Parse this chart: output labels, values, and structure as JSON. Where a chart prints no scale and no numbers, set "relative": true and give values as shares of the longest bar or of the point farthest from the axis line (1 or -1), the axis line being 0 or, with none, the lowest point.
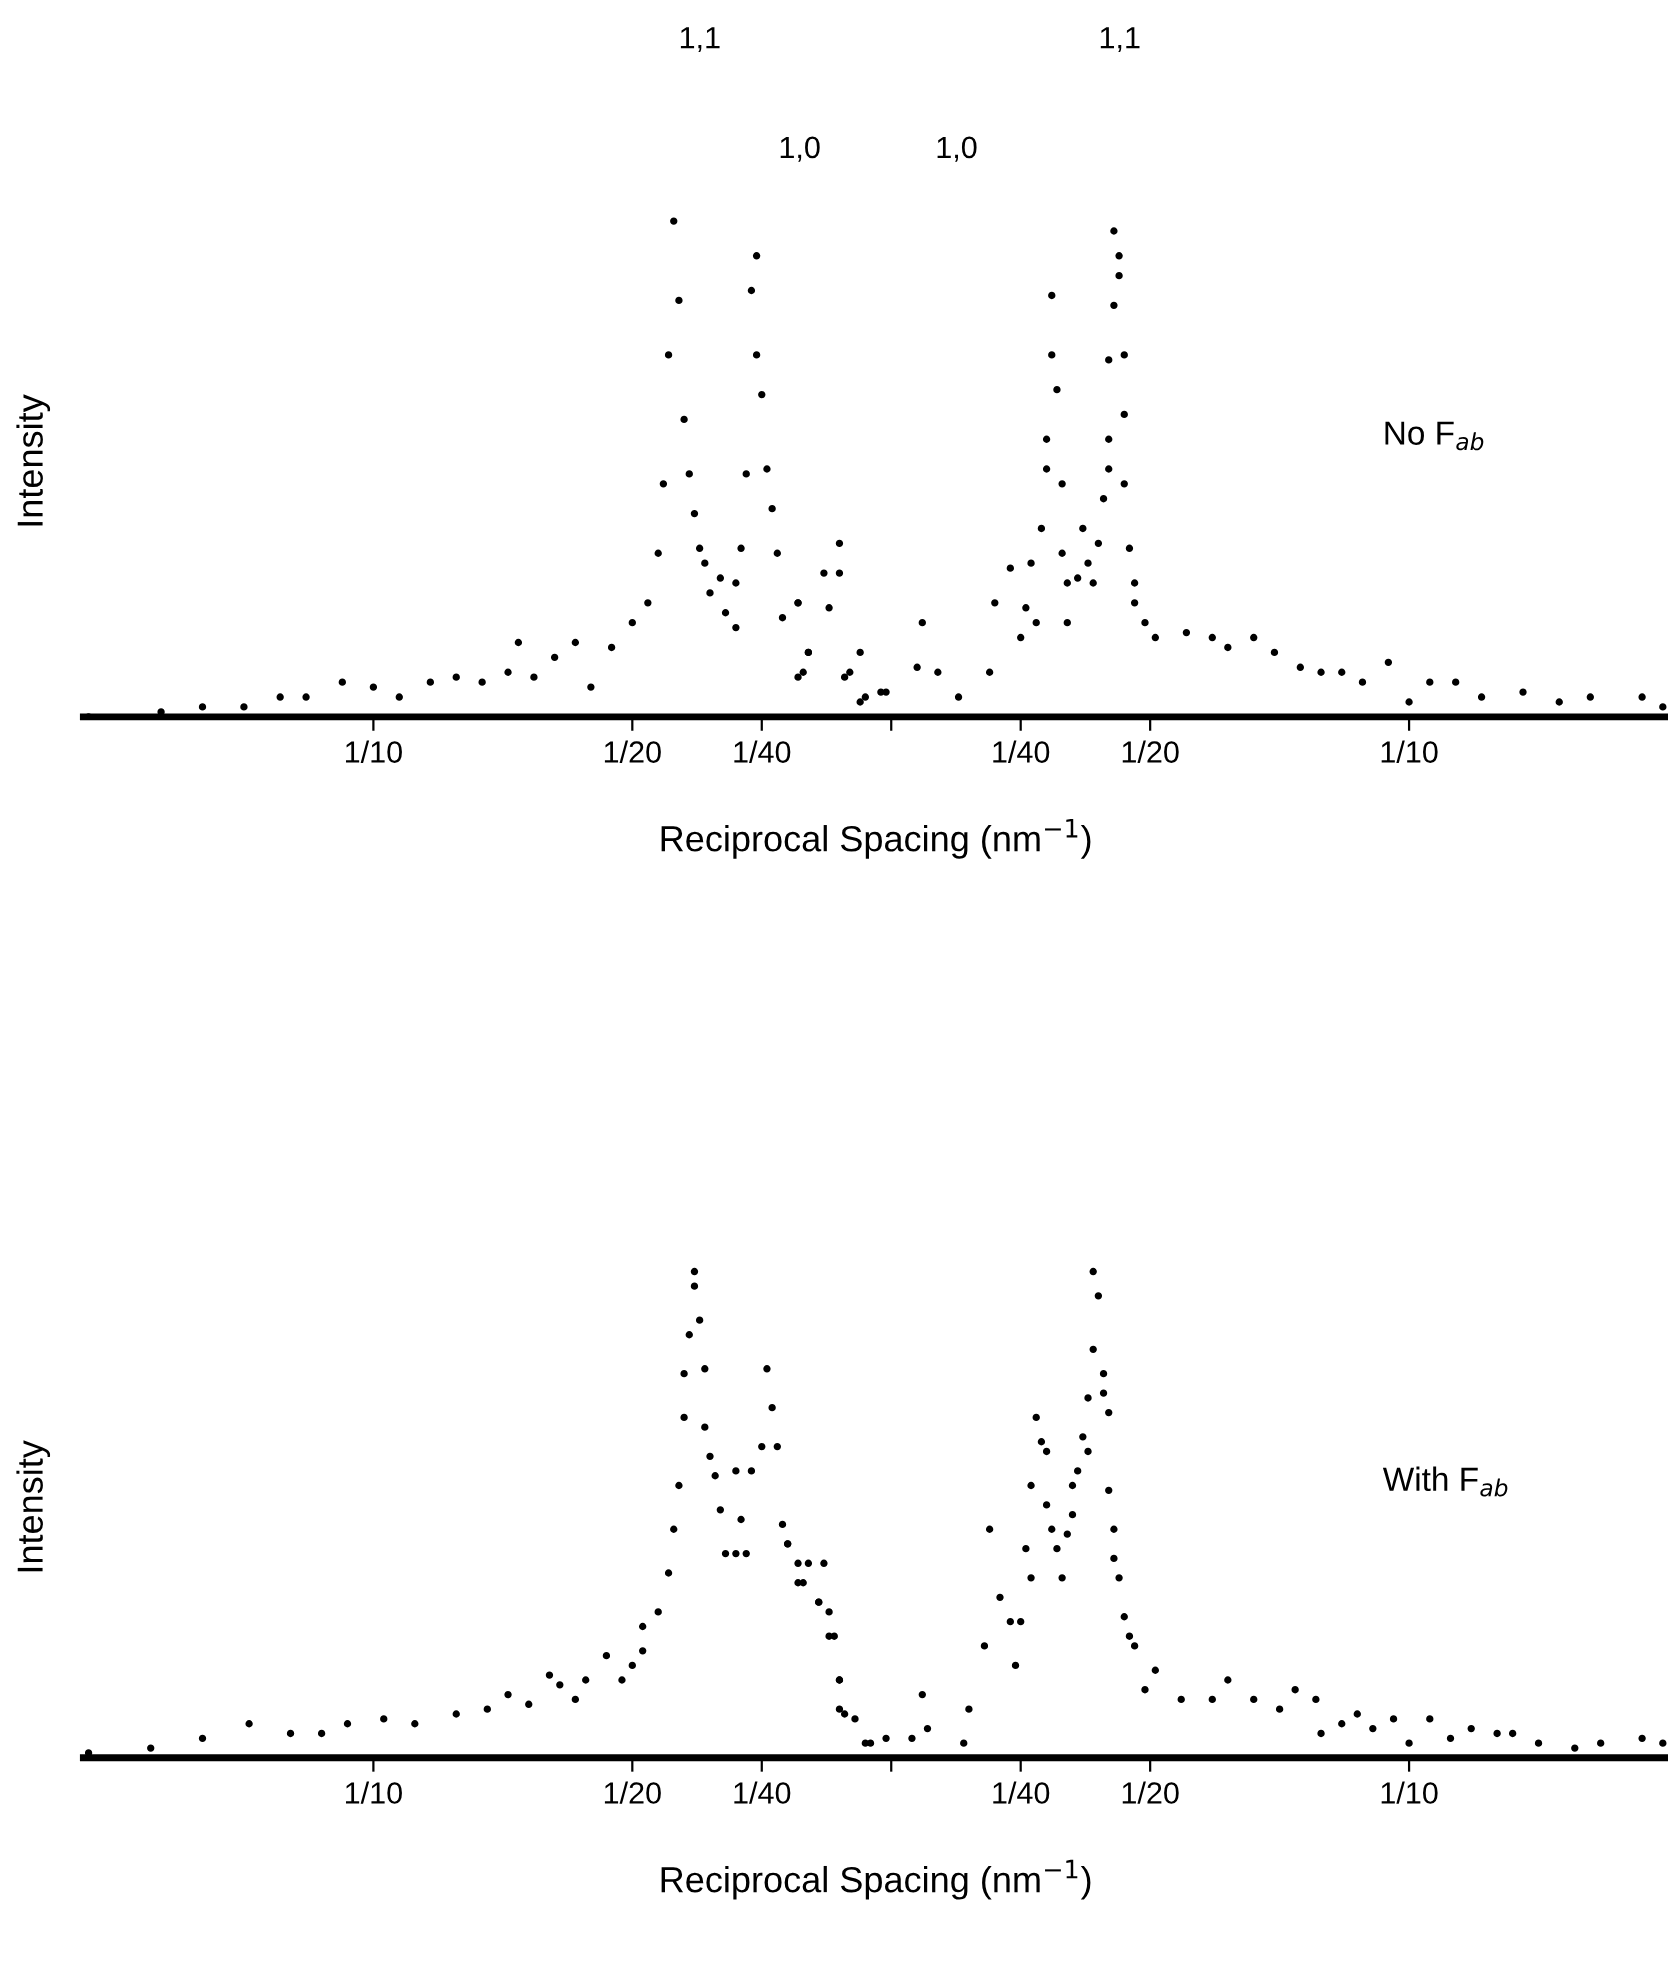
{
  "chart_data": [
    {
      "type": "scatter",
      "relative": true,
      "ylabel": "Intensity",
      "xlabel": "Reciprocal Spacing (nm$^{−1}$)",
      "xlim": [
        -0.156,
        0.15
      ],
      "xticks": [
        {
          "value": -0.1,
          "label": "1/10"
        },
        {
          "value": -0.05,
          "label": "1/20"
        },
        {
          "value": -0.025,
          "label": "1/40"
        },
        {
          "value": 0,
          "label": null
        },
        {
          "value": 0.025,
          "label": "1/40"
        },
        {
          "value": 0.05,
          "label": "1/20"
        },
        {
          "value": 0.1,
          "label": "1/10"
        }
      ],
      "tick_labels": "x",
      "grid": false,
      "marker": "circle",
      "annotations": [
        "1,1",
        "1,0",
        "1,0",
        "1,1",
        "No F$_{ab}$"
      ],
      "series": [
        {
          "color": "#000000",
          "x": [
            -0.155,
            -0.141,
            -0.133,
            -0.125,
            -0.118,
            -0.113,
            -0.106,
            -0.1,
            -0.095,
            -0.089,
            -0.084,
            -0.079,
            -0.074,
            -0.072,
            -0.069,
            -0.065,
            -0.061,
            -0.058,
            -0.054,
            -0.05,
            -0.047,
            -0.045,
            -0.044,
            -0.043,
            -0.042,
            -0.041,
            -0.04,
            -0.039,
            -0.038,
            -0.037,
            -0.036,
            -0.035,
            -0.033,
            -0.032,
            -0.03,
            -0.03,
            -0.029,
            -0.028,
            -0.027,
            -0.026,
            -0.026,
            -0.025,
            -0.024,
            -0.023,
            -0.022,
            -0.021,
            -0.018,
            -0.018,
            -0.016,
            -0.012,
            -0.01,
            -0.009,
            -0.006,
            -0.002,
            -0.018,
            -0.017,
            -0.016,
            -0.013,
            -0.01,
            -0.008,
            -0.006,
            -0.005,
            -0.001,
            0.005,
            0.006,
            0.009,
            0.013,
            0.019,
            0.02,
            0.023,
            0.025,
            0.026,
            0.027,
            0.028,
            0.029,
            0.03,
            0.03,
            0.031,
            0.031,
            0.032,
            0.033,
            0.033,
            0.034,
            0.034,
            0.036,
            0.037,
            0.038,
            0.039,
            0.04,
            0.041,
            0.042,
            0.042,
            0.042,
            0.043,
            0.043,
            0.044,
            0.044,
            0.045,
            0.045,
            0.045,
            0.046,
            0.047,
            0.047,
            0.049,
            0.051,
            0.057,
            0.062,
            0.065,
            0.07,
            0.074,
            0.079,
            0.083,
            0.087,
            0.091,
            0.096,
            0.1,
            0.104,
            0.109,
            0.114,
            0.122,
            0.129,
            0.135,
            0.145,
            0.149
          ],
          "values": [
            0.0,
            0.01,
            0.02,
            0.02,
            0.04,
            0.04,
            0.07,
            0.06,
            0.04,
            0.07,
            0.08,
            0.07,
            0.09,
            0.15,
            0.08,
            0.12,
            0.15,
            0.06,
            0.14,
            0.19,
            0.23,
            0.33,
            0.47,
            0.73,
            1.0,
            0.84,
            0.6,
            0.49,
            0.41,
            0.34,
            0.31,
            0.25,
            0.28,
            0.21,
            0.27,
            0.18,
            0.34,
            0.49,
            0.86,
            0.93,
            0.73,
            0.65,
            0.5,
            0.42,
            0.33,
            0.2,
            0.23,
            0.08,
            0.13,
            0.22,
            0.29,
            0.08,
            0.03,
            0.05,
            0.23,
            0.09,
            0.13,
            0.29,
            0.35,
            0.09,
            0.13,
            0.04,
            0.05,
            0.1,
            0.19,
            0.09,
            0.04,
            0.09,
            0.23,
            0.3,
            0.16,
            0.22,
            0.31,
            0.19,
            0.38,
            0.5,
            0.56,
            0.73,
            0.85,
            0.66,
            0.47,
            0.33,
            0.19,
            0.27,
            0.28,
            0.38,
            0.31,
            0.27,
            0.35,
            0.44,
            0.5,
            0.56,
            0.72,
            0.83,
            0.98,
            0.93,
            0.89,
            0.73,
            0.61,
            0.47,
            0.34,
            0.27,
            0.23,
            0.19,
            0.16,
            0.17,
            0.16,
            0.14,
            0.16,
            0.13,
            0.1,
            0.09,
            0.09,
            0.07,
            0.11,
            0.03,
            0.07,
            0.07,
            0.04,
            0.05,
            0.03,
            0.04,
            0.04,
            0.02
          ]
        }
      ]
    },
    {
      "type": "scatter",
      "relative": true,
      "ylabel": "Intensity",
      "xlabel": "Reciprocal Spacing (nm$^{−1}$)",
      "xlim": [
        -0.156,
        0.15
      ],
      "xticks": [
        {
          "value": -0.1,
          "label": "1/10"
        },
        {
          "value": -0.05,
          "label": "1/20"
        },
        {
          "value": -0.025,
          "label": "1/40"
        },
        {
          "value": 0,
          "label": null
        },
        {
          "value": 0.025,
          "label": "1/40"
        },
        {
          "value": 0.05,
          "label": "1/20"
        },
        {
          "value": 0.1,
          "label": "1/10"
        }
      ],
      "tick_labels": "x",
      "grid": false,
      "marker": "circle",
      "annotations": [
        "With F$_{ab}$"
      ],
      "series": [
        {
          "color": "#000000",
          "x": [
            -0.155,
            -0.143,
            -0.133,
            -0.124,
            -0.116,
            -0.11,
            -0.105,
            -0.098,
            -0.092,
            -0.084,
            -0.078,
            -0.074,
            -0.07,
            -0.066,
            -0.064,
            -0.061,
            -0.059,
            -0.055,
            -0.052,
            -0.05,
            -0.048,
            -0.048,
            -0.045,
            -0.043,
            -0.042,
            -0.041,
            -0.04,
            -0.04,
            -0.039,
            -0.038,
            -0.038,
            -0.037,
            -0.036,
            -0.036,
            -0.035,
            -0.034,
            -0.033,
            -0.032,
            -0.03,
            -0.03,
            -0.029,
            -0.028,
            -0.027,
            -0.025,
            -0.024,
            -0.023,
            -0.022,
            -0.021,
            -0.02,
            -0.018,
            -0.016,
            -0.014,
            -0.012,
            -0.011,
            -0.01,
            -0.01,
            -0.007,
            -0.004,
            -0.02,
            -0.018,
            -0.017,
            -0.014,
            -0.013,
            -0.012,
            -0.01,
            -0.009,
            -0.005,
            -0.001,
            0.004,
            0.006,
            0.007,
            0.014,
            0.015,
            0.018,
            0.019,
            0.021,
            0.023,
            0.024,
            0.025,
            0.026,
            0.027,
            0.027,
            0.028,
            0.029,
            0.03,
            0.03,
            0.031,
            0.032,
            0.033,
            0.034,
            0.035,
            0.035,
            0.036,
            0.037,
            0.038,
            0.038,
            0.039,
            0.039,
            0.04,
            0.041,
            0.041,
            0.042,
            0.042,
            0.043,
            0.043,
            0.044,
            0.045,
            0.046,
            0.047,
            0.049,
            0.051,
            0.056,
            0.062,
            0.065,
            0.07,
            0.075,
            0.078,
            0.082,
            0.083,
            0.087,
            0.09,
            0.093,
            0.097,
            0.1,
            0.104,
            0.108,
            0.112,
            0.117,
            0.12,
            0.125,
            0.132,
            0.137,
            0.145,
            0.149
          ],
          "values": [
            0.01,
            0.02,
            0.04,
            0.07,
            0.05,
            0.05,
            0.07,
            0.08,
            0.07,
            0.09,
            0.1,
            0.13,
            0.11,
            0.17,
            0.15,
            0.12,
            0.16,
            0.21,
            0.16,
            0.19,
            0.22,
            0.27,
            0.3,
            0.38,
            0.47,
            0.56,
            0.7,
            0.79,
            0.87,
            0.97,
            1.0,
            0.9,
            0.8,
            0.68,
            0.62,
            0.58,
            0.51,
            0.42,
            0.42,
            0.59,
            0.49,
            0.42,
            0.59,
            0.64,
            0.8,
            0.72,
            0.64,
            0.48,
            0.44,
            0.36,
            0.4,
            0.32,
            0.3,
            0.25,
            0.1,
            0.16,
            0.08,
            0.03,
            0.44,
            0.4,
            0.36,
            0.32,
            0.4,
            0.25,
            0.16,
            0.09,
            0.03,
            0.04,
            0.04,
            0.13,
            0.06,
            0.03,
            0.1,
            0.23,
            0.47,
            0.33,
            0.28,
            0.19,
            0.28,
            0.43,
            0.37,
            0.56,
            0.7,
            0.65,
            0.63,
            0.52,
            0.47,
            0.43,
            0.37,
            0.46,
            0.56,
            0.5,
            0.59,
            0.66,
            0.63,
            0.74,
            0.84,
            1.0,
            0.95,
            0.79,
            0.75,
            0.71,
            0.55,
            0.47,
            0.41,
            0.37,
            0.29,
            0.25,
            0.23,
            0.14,
            0.18,
            0.12,
            0.12,
            0.16,
            0.12,
            0.1,
            0.14,
            0.12,
            0.05,
            0.07,
            0.09,
            0.06,
            0.08,
            0.03,
            0.08,
            0.04,
            0.06,
            0.05,
            0.05,
            0.03,
            0.02,
            0.03,
            0.04,
            0.03
          ]
        }
      ]
    }
  ]
}
